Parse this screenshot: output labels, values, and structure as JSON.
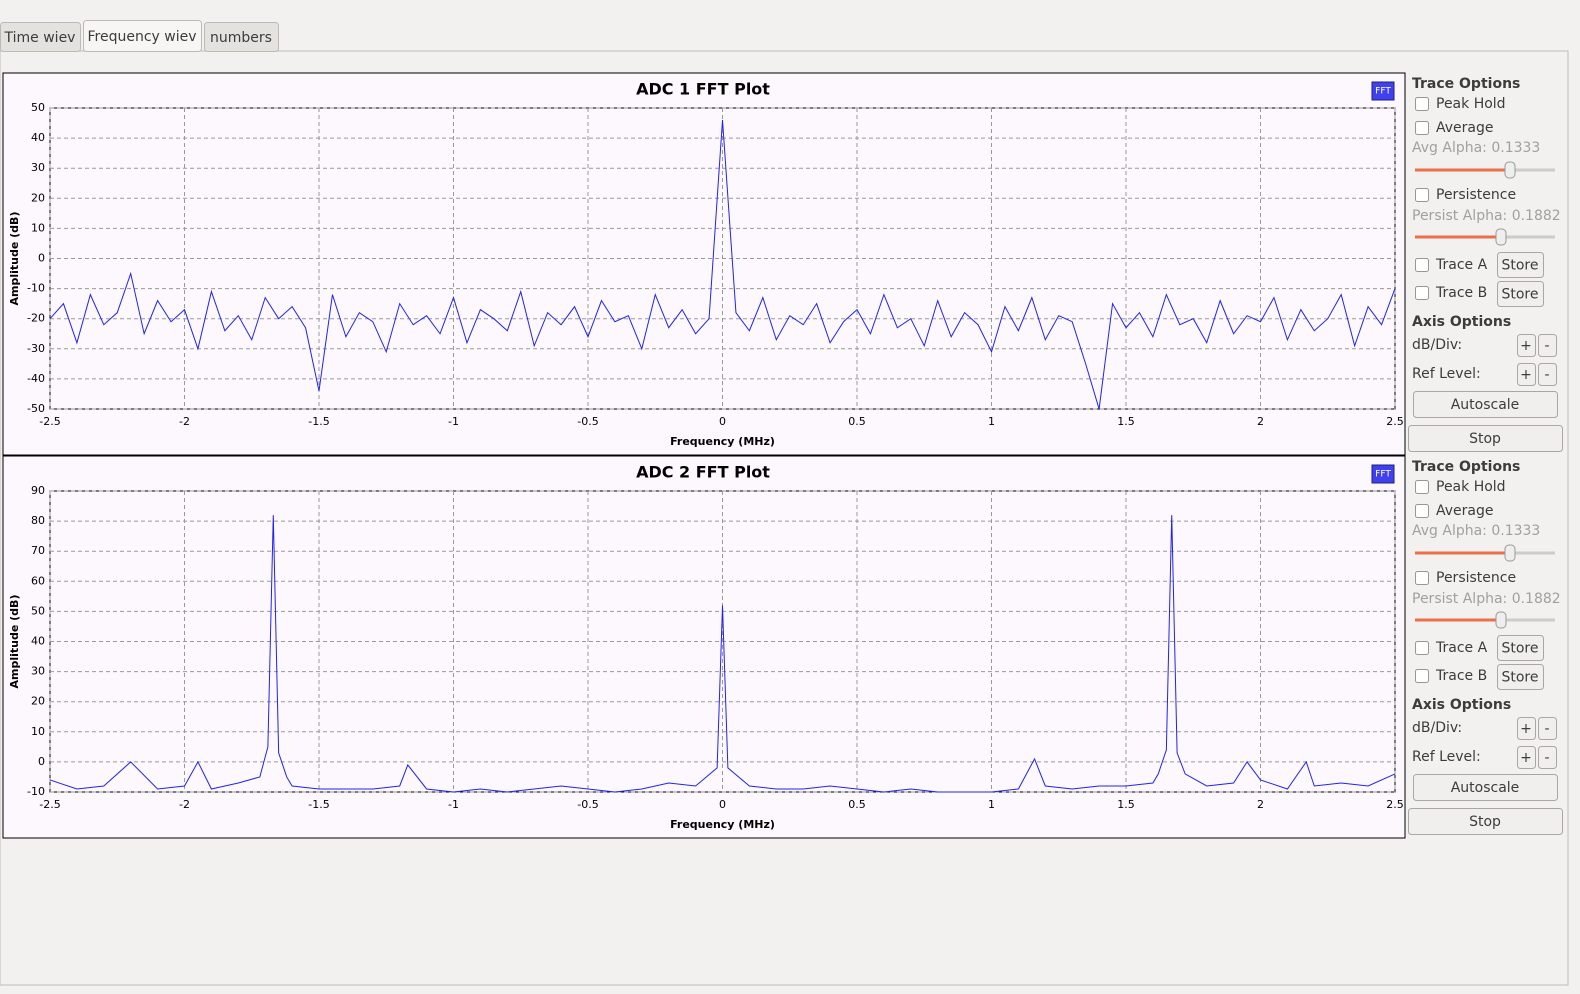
{
  "tabs": [
    "Time wiev",
    "Frequency wiev",
    "numbers"
  ],
  "active_tab": 1,
  "chart_data": [
    {
      "type": "line",
      "title": "ADC 1 FFT Plot",
      "badge": "FFT",
      "x_label": "Frequency (MHz)",
      "y_label": "Amplitude (dB)",
      "color": "#2222ee",
      "grid": true,
      "xlim": [
        -2.5,
        2.5
      ],
      "xticks": [
        -2.5,
        -2,
        -1.5,
        -1,
        -0.5,
        0,
        0.5,
        1,
        1.5,
        2,
        2.5
      ],
      "ylim": [
        -50,
        50
      ],
      "yticks": [
        -50,
        -40,
        -30,
        -20,
        -10,
        0,
        10,
        20,
        30,
        40,
        50
      ],
      "x": [
        -2.5,
        -2.45,
        -2.4,
        -2.35,
        -2.3,
        -2.25,
        -2.2,
        -2.15,
        -2.1,
        -2.05,
        -2,
        -1.95,
        -1.9,
        -1.85,
        -1.8,
        -1.75,
        -1.7,
        -1.65,
        -1.6,
        -1.55,
        -1.5,
        -1.45,
        -1.4,
        -1.35,
        -1.3,
        -1.25,
        -1.2,
        -1.15,
        -1.1,
        -1.05,
        -1,
        -0.95,
        -0.9,
        -0.85,
        -0.8,
        -0.75,
        -0.7,
        -0.65,
        -0.6,
        -0.55,
        -0.5,
        -0.45,
        -0.4,
        -0.35,
        -0.3,
        -0.25,
        -0.2,
        -0.15,
        -0.1,
        -0.05,
        0,
        0.05,
        0.1,
        0.15,
        0.2,
        0.25,
        0.3,
        0.35,
        0.4,
        0.45,
        0.5,
        0.55,
        0.6,
        0.65,
        0.7,
        0.75,
        0.8,
        0.85,
        0.9,
        0.95,
        1,
        1.05,
        1.1,
        1.15,
        1.2,
        1.25,
        1.3,
        1.35,
        1.4,
        1.45,
        1.5,
        1.55,
        1.6,
        1.65,
        1.7,
        1.75,
        1.8,
        1.85,
        1.9,
        1.95,
        2,
        2.05,
        2.1,
        2.15,
        2.2,
        2.25,
        2.3,
        2.35,
        2.4,
        2.45,
        2.5
      ],
      "values": [
        -20,
        -15,
        -28,
        -12,
        -22,
        -18,
        -5,
        -25,
        -14,
        -21,
        -17,
        -30,
        -11,
        -24,
        -19,
        -27,
        -13,
        -20,
        -16,
        -23,
        -44,
        -12,
        -26,
        -18,
        -21,
        -31,
        -15,
        -22,
        -19,
        -25,
        -13,
        -28,
        -17,
        -20,
        -24,
        -11,
        -29,
        -18,
        -22,
        -16,
        -26,
        -14,
        -21,
        -19,
        -30,
        -12,
        -23,
        -17,
        -25,
        -20,
        46,
        -18,
        -24,
        -13,
        -27,
        -19,
        -22,
        -15,
        -28,
        -21,
        -17,
        -25,
        -12,
        -23,
        -20,
        -29,
        -14,
        -26,
        -18,
        -22,
        -31,
        -16,
        -24,
        -13,
        -27,
        -19,
        -21,
        -35,
        -50,
        -15,
        -23,
        -18,
        -26,
        -12,
        -22,
        -20,
        -28,
        -14,
        -25,
        -19,
        -21,
        -13,
        -27,
        -17,
        -24,
        -20,
        -12,
        -29,
        -16,
        -22,
        -10
      ]
    },
    {
      "type": "line",
      "title": "ADC 2 FFT Plot",
      "badge": "FFT",
      "x_label": "Frequency (MHz)",
      "y_label": "Amplitude (dB)",
      "color": "#2222ee",
      "grid": true,
      "xlim": [
        -2.5,
        2.5
      ],
      "xticks": [
        -2.5,
        -2,
        -1.5,
        -1,
        -0.5,
        0,
        0.5,
        1,
        1.5,
        2,
        2.5
      ],
      "ylim": [
        -10,
        90
      ],
      "yticks": [
        -10,
        0,
        10,
        20,
        30,
        40,
        50,
        60,
        70,
        80,
        90
      ],
      "x": [
        -2.5,
        -2.4,
        -2.3,
        -2.2,
        -2.1,
        -2,
        -1.95,
        -1.9,
        -1.8,
        -1.72,
        -1.69,
        -1.67,
        -1.65,
        -1.62,
        -1.6,
        -1.5,
        -1.4,
        -1.3,
        -1.2,
        -1.17,
        -1.1,
        -1,
        -0.9,
        -0.8,
        -0.7,
        -0.6,
        -0.5,
        -0.4,
        -0.3,
        -0.2,
        -0.1,
        -0.02,
        0,
        0.02,
        0.1,
        0.2,
        0.3,
        0.4,
        0.5,
        0.6,
        0.7,
        0.8,
        0.9,
        1,
        1.1,
        1.16,
        1.2,
        1.3,
        1.4,
        1.5,
        1.6,
        1.62,
        1.65,
        1.67,
        1.69,
        1.72,
        1.8,
        1.9,
        1.95,
        2,
        2.1,
        2.17,
        2.2,
        2.3,
        2.4,
        2.5
      ],
      "values": [
        -6,
        -9,
        -8,
        0,
        -9,
        -8,
        0,
        -9,
        -7,
        -5,
        5,
        82,
        3,
        -5,
        -8,
        -9,
        -9,
        -9,
        -8,
        -1,
        -9,
        -10,
        -9,
        -10,
        -9,
        -8,
        -9,
        -10,
        -9,
        -7,
        -8,
        -2,
        52,
        -2,
        -8,
        -9,
        -9,
        -8,
        -9,
        -10,
        -9,
        -10,
        -10,
        -10,
        -9,
        1,
        -8,
        -9,
        -8,
        -8,
        -7,
        -4,
        4,
        82,
        3,
        -4,
        -8,
        -7,
        0,
        -6,
        -9,
        0,
        -8,
        -7,
        -8,
        -4
      ]
    }
  ],
  "panels": [
    {
      "trace_title": "Trace Options",
      "peak_hold": "Peak Hold",
      "average": "Average",
      "avg_alpha": "Avg Alpha: 0.1333",
      "persistence": "Persistence",
      "persist_alpha": "Persist Alpha: 0.1882",
      "trace_a": "Trace A",
      "store_a": "Store",
      "trace_b": "Trace B",
      "store_b": "Store",
      "axis_title": "Axis Options",
      "db_div": "dB/Div:",
      "db_plus": "+",
      "db_minus": "-",
      "ref_level": "Ref Level:",
      "ref_plus": "+",
      "ref_minus": "-",
      "autoscale": "Autoscale",
      "stop": "Stop"
    },
    {
      "trace_title": "Trace Options",
      "peak_hold": "Peak Hold",
      "average": "Average",
      "avg_alpha": "Avg Alpha: 0.1333",
      "persistence": "Persistence",
      "persist_alpha": "Persist Alpha: 0.1882",
      "trace_a": "Trace A",
      "store_a": "Store",
      "trace_b": "Trace B",
      "store_b": "Store",
      "axis_title": "Axis Options",
      "db_div": "dB/Div:",
      "db_plus": "+",
      "db_minus": "-",
      "ref_level": "Ref Level:",
      "ref_plus": "+",
      "ref_minus": "-",
      "autoscale": "Autoscale",
      "stop": "Stop"
    }
  ]
}
